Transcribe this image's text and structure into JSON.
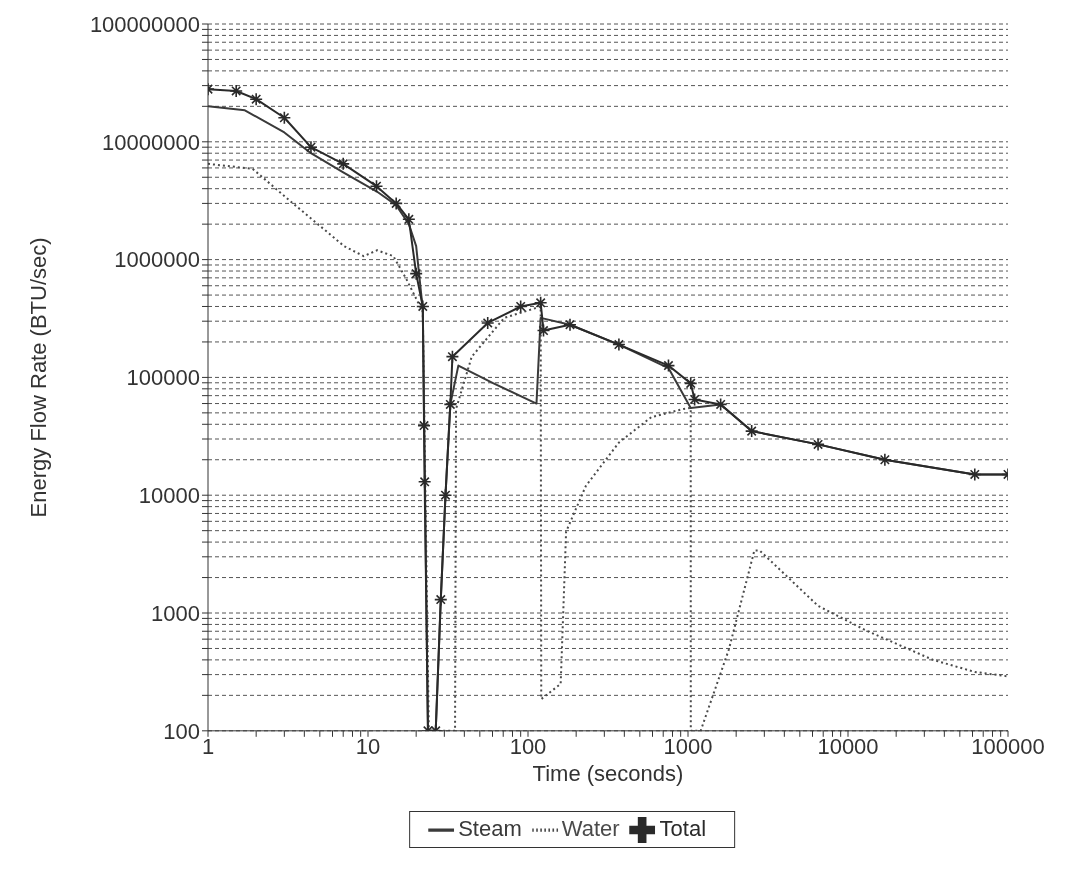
{
  "chart_data": {
    "type": "line",
    "xlabel": "Time (seconds)",
    "ylabel": "Energy Flow Rate (BTU/sec)",
    "log": "xy",
    "grid": "y",
    "legend": "bottom",
    "xlim": [
      1,
      100000
    ],
    "ylim": [
      100,
      100000000
    ],
    "xticks": [
      1,
      {
        "value": 2,
        "label": null
      },
      {
        "value": 3,
        "label": null
      },
      {
        "value": 4,
        "label": null
      },
      {
        "value": 5,
        "label": null
      },
      {
        "value": 6,
        "label": null
      },
      {
        "value": 7,
        "label": null
      },
      {
        "value": 8,
        "label": null
      },
      {
        "value": 9,
        "label": null
      },
      10,
      {
        "value": 20,
        "label": null
      },
      {
        "value": 30,
        "label": null
      },
      {
        "value": 40,
        "label": null
      },
      {
        "value": 50,
        "label": null
      },
      {
        "value": 60,
        "label": null
      },
      {
        "value": 70,
        "label": null
      },
      {
        "value": 80,
        "label": null
      },
      {
        "value": 90,
        "label": null
      },
      100,
      {
        "value": 200,
        "label": null
      },
      {
        "value": 300,
        "label": null
      },
      {
        "value": 400,
        "label": null
      },
      {
        "value": 500,
        "label": null
      },
      {
        "value": 600,
        "label": null
      },
      {
        "value": 700,
        "label": null
      },
      {
        "value": 800,
        "label": null
      },
      {
        "value": 900,
        "label": null
      },
      1000,
      {
        "value": 2000,
        "label": null
      },
      {
        "value": 3000,
        "label": null
      },
      {
        "value": 4000,
        "label": null
      },
      {
        "value": 5000,
        "label": null
      },
      {
        "value": 6000,
        "label": null
      },
      {
        "value": 7000,
        "label": null
      },
      {
        "value": 8000,
        "label": null
      },
      {
        "value": 9000,
        "label": null
      },
      10000,
      {
        "value": 20000,
        "label": null
      },
      {
        "value": 30000,
        "label": null
      },
      {
        "value": 40000,
        "label": null
      },
      {
        "value": 50000,
        "label": null
      },
      {
        "value": 60000,
        "label": null
      },
      {
        "value": 70000,
        "label": null
      },
      {
        "value": 80000,
        "label": null
      },
      {
        "value": 90000,
        "label": null
      },
      100000
    ],
    "yticks": [
      100,
      {
        "value": 200,
        "label": null
      },
      {
        "value": 300,
        "label": null
      },
      {
        "value": 400,
        "label": null
      },
      {
        "value": 500,
        "label": null
      },
      {
        "value": 600,
        "label": null
      },
      {
        "value": 700,
        "label": null
      },
      {
        "value": 800,
        "label": null
      },
      {
        "value": 900,
        "label": null
      },
      1000,
      {
        "value": 2000,
        "label": null
      },
      {
        "value": 3000,
        "label": null
      },
      {
        "value": 4000,
        "label": null
      },
      {
        "value": 5000,
        "label": null
      },
      {
        "value": 6000,
        "label": null
      },
      {
        "value": 7000,
        "label": null
      },
      {
        "value": 8000,
        "label": null
      },
      {
        "value": 9000,
        "label": null
      },
      10000,
      {
        "value": 20000,
        "label": null
      },
      {
        "value": 30000,
        "label": null
      },
      {
        "value": 40000,
        "label": null
      },
      {
        "value": 50000,
        "label": null
      },
      {
        "value": 60000,
        "label": null
      },
      {
        "value": 70000,
        "label": null
      },
      {
        "value": 80000,
        "label": null
      },
      {
        "value": 90000,
        "label": null
      },
      100000,
      {
        "value": 200000,
        "label": null
      },
      {
        "value": 300000,
        "label": null
      },
      {
        "value": 400000,
        "label": null
      },
      {
        "value": 500000,
        "label": null
      },
      {
        "value": 600000,
        "label": null
      },
      {
        "value": 700000,
        "label": null
      },
      {
        "value": 800000,
        "label": null
      },
      {
        "value": 900000,
        "label": null
      },
      1000000,
      {
        "value": 2000000,
        "label": null
      },
      {
        "value": 3000000,
        "label": null
      },
      {
        "value": 4000000,
        "label": null
      },
      {
        "value": 5000000,
        "label": null
      },
      {
        "value": 6000000,
        "label": null
      },
      {
        "value": 7000000,
        "label": null
      },
      {
        "value": 8000000,
        "label": null
      },
      {
        "value": 9000000,
        "label": null
      },
      10000000,
      {
        "value": 20000000,
        "label": null
      },
      {
        "value": 30000000,
        "label": null
      },
      {
        "value": 40000000,
        "label": null
      },
      {
        "value": 50000000,
        "label": null
      },
      {
        "value": 60000000,
        "label": null
      },
      {
        "value": 70000000,
        "label": null
      },
      {
        "value": 80000000,
        "label": null
      },
      {
        "value": 90000000,
        "label": null
      },
      100000000
    ],
    "series": [
      {
        "name": "Steam",
        "color": "#3a3a3a",
        "line_style": "solid",
        "marker": "none",
        "x": [
          1,
          1.7,
          3,
          4.4,
          7,
          11.3,
          15,
          18,
          20,
          22,
          23.7,
          26.5,
          28.5,
          30.5,
          32.7,
          36.7,
          60,
          113,
          120,
          183,
          370,
          755,
          1040,
          1600,
          2500,
          6500,
          17000,
          62000,
          100000
        ],
        "values": [
          20000000,
          18500000,
          12000000,
          8000000,
          5500000,
          3800000,
          2900000,
          2000000,
          1300000,
          380000,
          100,
          100,
          1300,
          10000,
          59000,
          126000,
          90000,
          60000,
          320000,
          280000,
          190000,
          120000,
          55000,
          59000,
          35000,
          27000,
          20000,
          15000,
          15000
        ]
      },
      {
        "name": "Water",
        "color": "#4a4a4a",
        "line_style": "dotted",
        "marker": "none",
        "x": [
          1,
          1.9,
          3.5,
          7.1,
          9.4,
          11.4,
          14.4,
          17.3,
          22,
          24,
          35,
          35.5,
          44.5,
          71,
          120,
          121,
          160,
          166,
          173,
          230,
          370,
          590,
          940,
          1040,
          1041,
          1200,
          1800,
          2600,
          2800,
          6500,
          13000,
          34000,
          62000,
          100000
        ],
        "values": [
          6500000,
          5900000,
          2900000,
          1300000,
          1070000,
          1200000,
          1070000,
          690000,
          360000,
          100,
          100,
          54000,
          150000,
          320000,
          400000,
          186,
          250,
          1000,
          4900,
          12000,
          28000,
          46000,
          54000,
          55000,
          100,
          100,
          490,
          3400,
          3400,
          1150,
          710,
          400,
          316,
          290
        ]
      },
      {
        "name": "Total",
        "color": "#2a2a2a",
        "line_style": "solid",
        "marker": "cross",
        "x": [
          1,
          1.5,
          2,
          3,
          4.4,
          7,
          11.3,
          15,
          18,
          20,
          22,
          22.4,
          22.6,
          23.7,
          26.5,
          28.5,
          30.5,
          32.7,
          33.7,
          56,
          90,
          120,
          125,
          183,
          370,
          755,
          1040,
          1100,
          1600,
          2500,
          6500,
          17000,
          62000,
          100000
        ],
        "values": [
          28000000,
          27000000,
          23000000,
          16000000,
          9000000,
          6500000,
          4200000,
          3000000,
          2200000,
          760000,
          400000,
          39000,
          13000,
          100,
          100,
          1300,
          10000,
          59000,
          150000,
          290000,
          400000,
          430000,
          250000,
          280000,
          190000,
          126000,
          89000,
          65000,
          59000,
          35000,
          27000,
          20000,
          15000,
          15000
        ]
      }
    ]
  }
}
